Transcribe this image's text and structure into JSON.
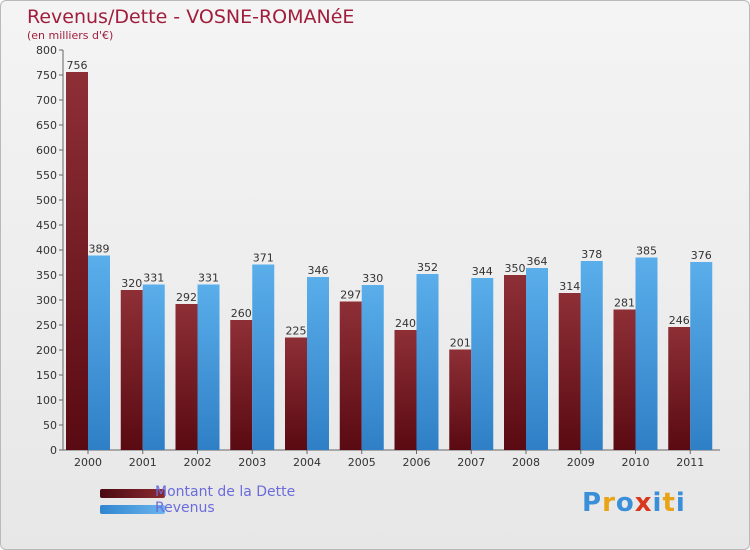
{
  "title": "Revenus/Dette - VOSNE-ROMANéE",
  "subtitle": "(en milliers d'€)",
  "colors": {
    "dette": "#7a1a22",
    "revenus": "#4b9fe0",
    "title": "#a01e3c",
    "legend_text": "#6b6bdc"
  },
  "logo": {
    "text": "Proxiti",
    "letters": [
      "P",
      "r",
      "o",
      "x",
      "i",
      "t",
      "i"
    ],
    "colors": [
      "#3a8fd8",
      "#e8a317",
      "#3a8fd8",
      "#d7381e",
      "#3a8fd8",
      "#e8a317",
      "#3a8fd8"
    ]
  },
  "legend": [
    {
      "label": "Montant de la Dette",
      "color": "#7a1a22"
    },
    {
      "label": "Revenus",
      "color": "#4b9fe0"
    }
  ],
  "chart_data": {
    "type": "bar",
    "title": "Revenus/Dette - VOSNE-ROMANéE",
    "subtitle": "(en milliers d'€)",
    "xlabel": "",
    "ylabel": "",
    "ylim": [
      0,
      800
    ],
    "yticks": [
      0,
      50,
      100,
      150,
      200,
      250,
      300,
      350,
      400,
      450,
      500,
      550,
      600,
      650,
      700,
      750,
      800
    ],
    "grid": false,
    "legend_position": "bottom-left",
    "categories": [
      "2000",
      "2001",
      "2002",
      "2003",
      "2004",
      "2005",
      "2006",
      "2007",
      "2008",
      "2009",
      "2010",
      "2011"
    ],
    "series": [
      {
        "name": "Montant de la Dette",
        "color": "#7a1a22",
        "values": [
          756,
          320,
          292,
          260,
          225,
          297,
          240,
          201,
          350,
          314,
          281,
          246
        ]
      },
      {
        "name": "Revenus",
        "color": "#4b9fe0",
        "values": [
          389,
          331,
          331,
          371,
          346,
          330,
          352,
          344,
          364,
          378,
          385,
          376
        ]
      }
    ]
  }
}
